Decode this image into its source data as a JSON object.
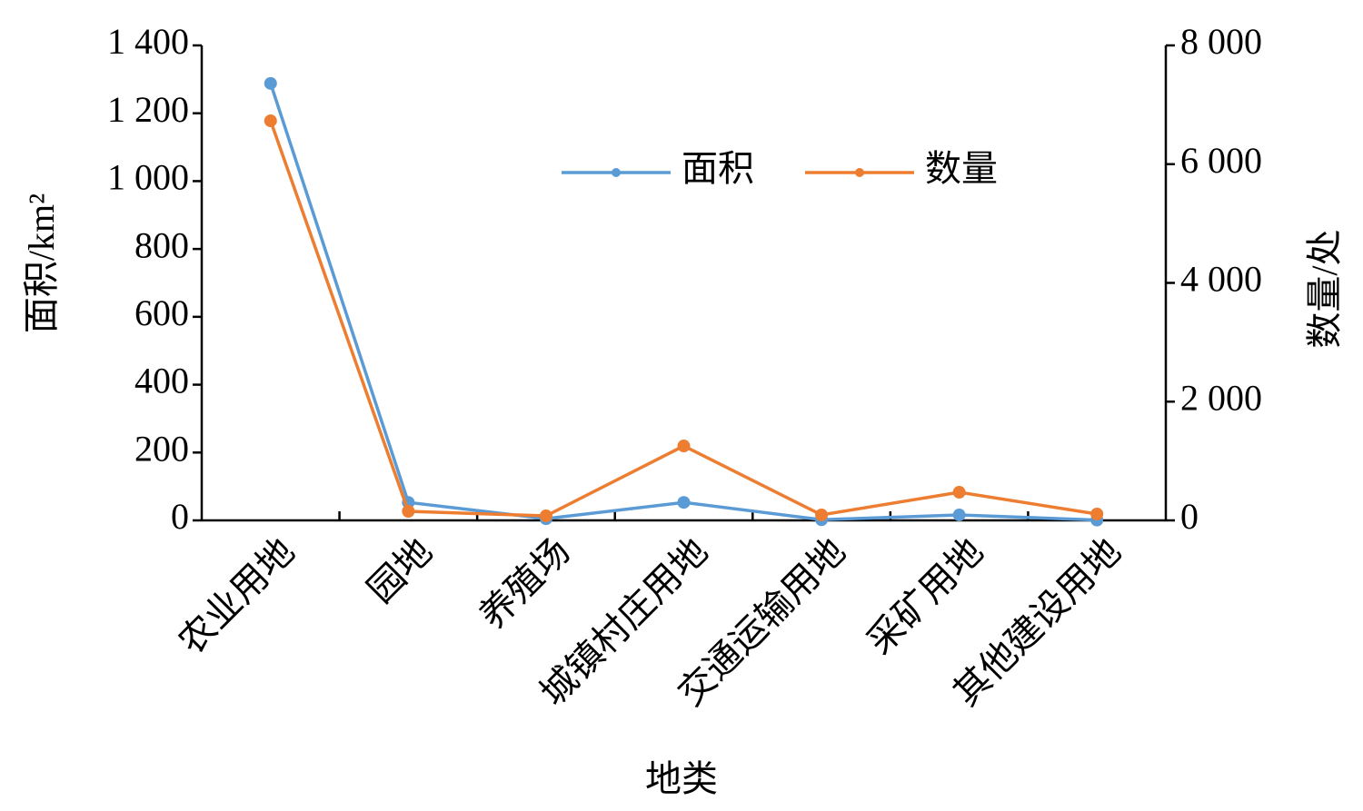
{
  "chart_data": {
    "type": "line",
    "x_label": "地类",
    "y_label": "面积/km²",
    "y2_label": "数量/处",
    "categories": [
      "农业用地",
      "园地",
      "养殖场",
      "城镇村庄用地",
      "交通运输用地",
      "采矿用地",
      "其他建设用地"
    ],
    "series": [
      {
        "name": "面积",
        "color": "#5b9bd5",
        "values": [
          1288,
          53,
          5,
          53,
          2,
          16,
          1
        ]
      },
      {
        "name": "数量",
        "color": "#ed7d31",
        "axis": "y2",
        "values": [
          6730,
          153,
          76,
          1254,
          92,
          474,
          107
        ]
      }
    ],
    "ylim": [
      0,
      1400
    ],
    "yticks": [
      0,
      200,
      400,
      600,
      800,
      {
        "value": 1000,
        "label": "1 000"
      },
      {
        "value": 1200,
        "label": "1 200"
      },
      {
        "value": 1400,
        "label": "1 400"
      }
    ],
    "y2lim": [
      0,
      8000
    ],
    "y2ticks": [
      0,
      {
        "value": 2000,
        "label": "2 000"
      },
      {
        "value": 4000,
        "label": "4 000"
      },
      {
        "value": 6000,
        "label": "6 000"
      },
      {
        "value": 8000,
        "label": "8 000"
      }
    ],
    "legend": "top"
  }
}
